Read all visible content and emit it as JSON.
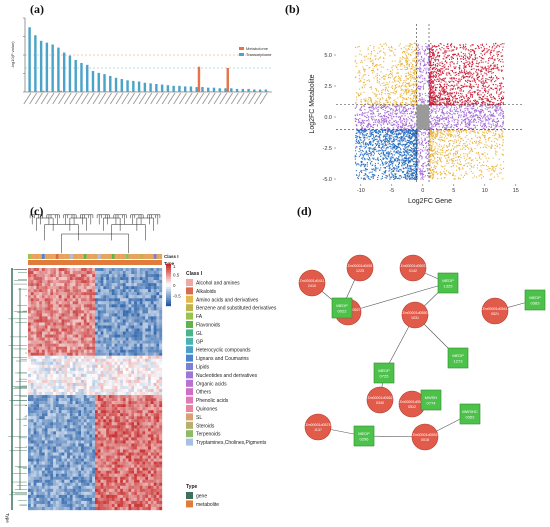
{
  "panel_labels": {
    "a": "(a)",
    "b": "(b)",
    "c": "(c)",
    "d": "(d)"
  },
  "chart_data": [
    {
      "panel": "a",
      "type": "bar",
      "ylabel": "-log10(P value)",
      "legend": {
        "placement": "top-right",
        "entries": [
          {
            "name": "Metabolome",
            "color": "#e8734a"
          },
          {
            "name": "Transcriptome",
            "color": "#4aa3c8"
          }
        ]
      },
      "series": [
        {
          "name": "Transcriptome",
          "values": [
            10.5,
            9.2,
            8.3,
            8.0,
            7.7,
            7.2,
            6.4,
            5.9,
            5.2,
            4.7,
            4.4,
            3.4,
            3.1,
            2.9,
            2.6,
            2.3,
            2.1,
            1.9,
            1.8,
            1.7,
            1.5,
            1.4,
            1.3,
            1.2,
            1.1,
            1.0,
            1.0,
            0.9,
            0.9,
            0.8,
            0.8,
            0.7,
            0.7,
            0.6,
            0.6,
            0.6,
            0.5,
            0.5,
            0.5,
            0.4,
            0.4,
            0.4
          ]
        },
        {
          "name": "Metabolome",
          "values": [
            0.1,
            0.1,
            0.2,
            0.1,
            0.1,
            0.2,
            0.1,
            0.1,
            0.1,
            0.1,
            0.1,
            0.1,
            0.1,
            0.1,
            0.1,
            0.1,
            0.1,
            0.1,
            0.1,
            0.1,
            0.1,
            0.1,
            0.1,
            0.1,
            0.1,
            0.1,
            0.1,
            0.1,
            0.1,
            4.1,
            0.1,
            0.1,
            0.1,
            0.1,
            3.9,
            0.1,
            0.1,
            0.1,
            0.1,
            0.1,
            0.1,
            0.1
          ]
        }
      ],
      "ylim": [
        0,
        12
      ]
    },
    {
      "panel": "b",
      "type": "scatter",
      "xlabel": "Log2FC Gene",
      "ylabel": "Log2FC Metabolite",
      "xlim": [
        -14,
        16
      ],
      "ylim": [
        -5.4,
        7.5
      ],
      "xticks": [
        -10,
        -5,
        0,
        5,
        10,
        15
      ],
      "yticks": [
        -5.0,
        -2.5,
        0.0,
        2.5,
        5.0
      ],
      "thresholds": {
        "x": [
          -1,
          1
        ],
        "y": [
          -1,
          1
        ]
      },
      "quadrants": [
        {
          "label": "up-up",
          "color": "#cc1f3a",
          "x": [
            1,
            13
          ],
          "y": [
            1,
            6
          ]
        },
        {
          "label": "down-down",
          "color": "#2a6fc0",
          "x": [
            -11,
            -1
          ],
          "y": [
            -5,
            -1
          ]
        },
        {
          "label": "down-up",
          "color": "#e8b33c",
          "x": [
            -11,
            -1
          ],
          "y": [
            1,
            6
          ]
        },
        {
          "label": "up-down",
          "color": "#e8b33c",
          "x": [
            1,
            13
          ],
          "y": [
            -5,
            -1
          ]
        },
        {
          "label": "mid-x",
          "color": "#a36ad6",
          "x": [
            -11,
            13
          ],
          "y": [
            -1,
            1
          ]
        },
        {
          "label": "mid-y",
          "color": "#a36ad6",
          "x": [
            -1,
            1
          ],
          "y": [
            -5,
            6
          ]
        }
      ]
    }
  ],
  "heatmap": {
    "class_header": "Class I",
    "type_header": "Type",
    "colorbar_ticks": [
      "1",
      "0.5",
      "0",
      "-0.5"
    ],
    "colorbar_colors": [
      "#c62828",
      "#ffffff",
      "#1f5aa6"
    ],
    "class_legend_title": "Class I",
    "classes": [
      {
        "name": "Alcohol and amines",
        "color": "#f2a7a0"
      },
      {
        "name": "Alkaloids",
        "color": "#d86b4a"
      },
      {
        "name": "Amino acids and derivatives",
        "color": "#e4b94a"
      },
      {
        "name": "Benzene and substituted derivatives",
        "color": "#bfb44a"
      },
      {
        "name": "FA",
        "color": "#9bc24a"
      },
      {
        "name": "Flavonoids",
        "color": "#5db54a"
      },
      {
        "name": "GL",
        "color": "#4ab58a"
      },
      {
        "name": "GP",
        "color": "#4ab5b0"
      },
      {
        "name": "Heterocyclic compounds",
        "color": "#4aa0c8"
      },
      {
        "name": "Lignans and Coumarins",
        "color": "#4a86d0"
      },
      {
        "name": "Lipids",
        "color": "#7b7fd6"
      },
      {
        "name": "Nucleotides and derivatives",
        "color": "#9a78d4"
      },
      {
        "name": "Organic acids",
        "color": "#b872cf"
      },
      {
        "name": "Others",
        "color": "#d06fc5"
      },
      {
        "name": "Phenolic acids",
        "color": "#e27ab6"
      },
      {
        "name": "Quinones",
        "color": "#ec84a0"
      },
      {
        "name": "SL",
        "color": "#d8a070"
      },
      {
        "name": "Steroids",
        "color": "#b6b06a"
      },
      {
        "name": "Terpenoids",
        "color": "#8ebc64"
      },
      {
        "name": "Tryptamines,Cholines,Pigments",
        "color": "#a7c0e4"
      }
    ],
    "type_legend_title": "Type",
    "types": [
      {
        "name": "gene",
        "color": "#3f6f5f"
      },
      {
        "name": "metabolite",
        "color": "#e07b3a"
      }
    ],
    "bottom_label": "Type"
  },
  "network": {
    "gene_nodes": [
      {
        "label": "Zm00001d0411",
        "sub": "2410"
      },
      {
        "label": "Zm00001d0491",
        "sub": "1225"
      },
      {
        "label": "Zm00001d0503",
        "sub": "0142"
      },
      {
        "label": "Zm00001d0527",
        "sub": "0245"
      },
      {
        "label": "Zm00001d0541",
        "sub": "0521"
      },
      {
        "label": "Zm00001d0550",
        "sub": "1031"
      },
      {
        "label": "Zm00001d0562",
        "sub": "0340"
      },
      {
        "label": "Zm00001d0565",
        "sub": "0512"
      },
      {
        "label": "Zm00001d0578",
        "sub": "1137"
      },
      {
        "label": "Zm00001d0593",
        "sub": "0018"
      }
    ],
    "metabolite_nodes": [
      {
        "label": "MEDP",
        "sub": "0022"
      },
      {
        "label": "MEDP",
        "sub": "1325"
      },
      {
        "label": "MEDP",
        "sub": "0383"
      },
      {
        "label": "MEDP",
        "sub": "1273"
      },
      {
        "label": "MEDP",
        "sub": "0725"
      },
      {
        "label": "MWSH",
        "sub": "0774"
      },
      {
        "label": "MWSHC",
        "sub": "0352"
      },
      {
        "label": "MEDP",
        "sub": "0296"
      }
    ]
  }
}
